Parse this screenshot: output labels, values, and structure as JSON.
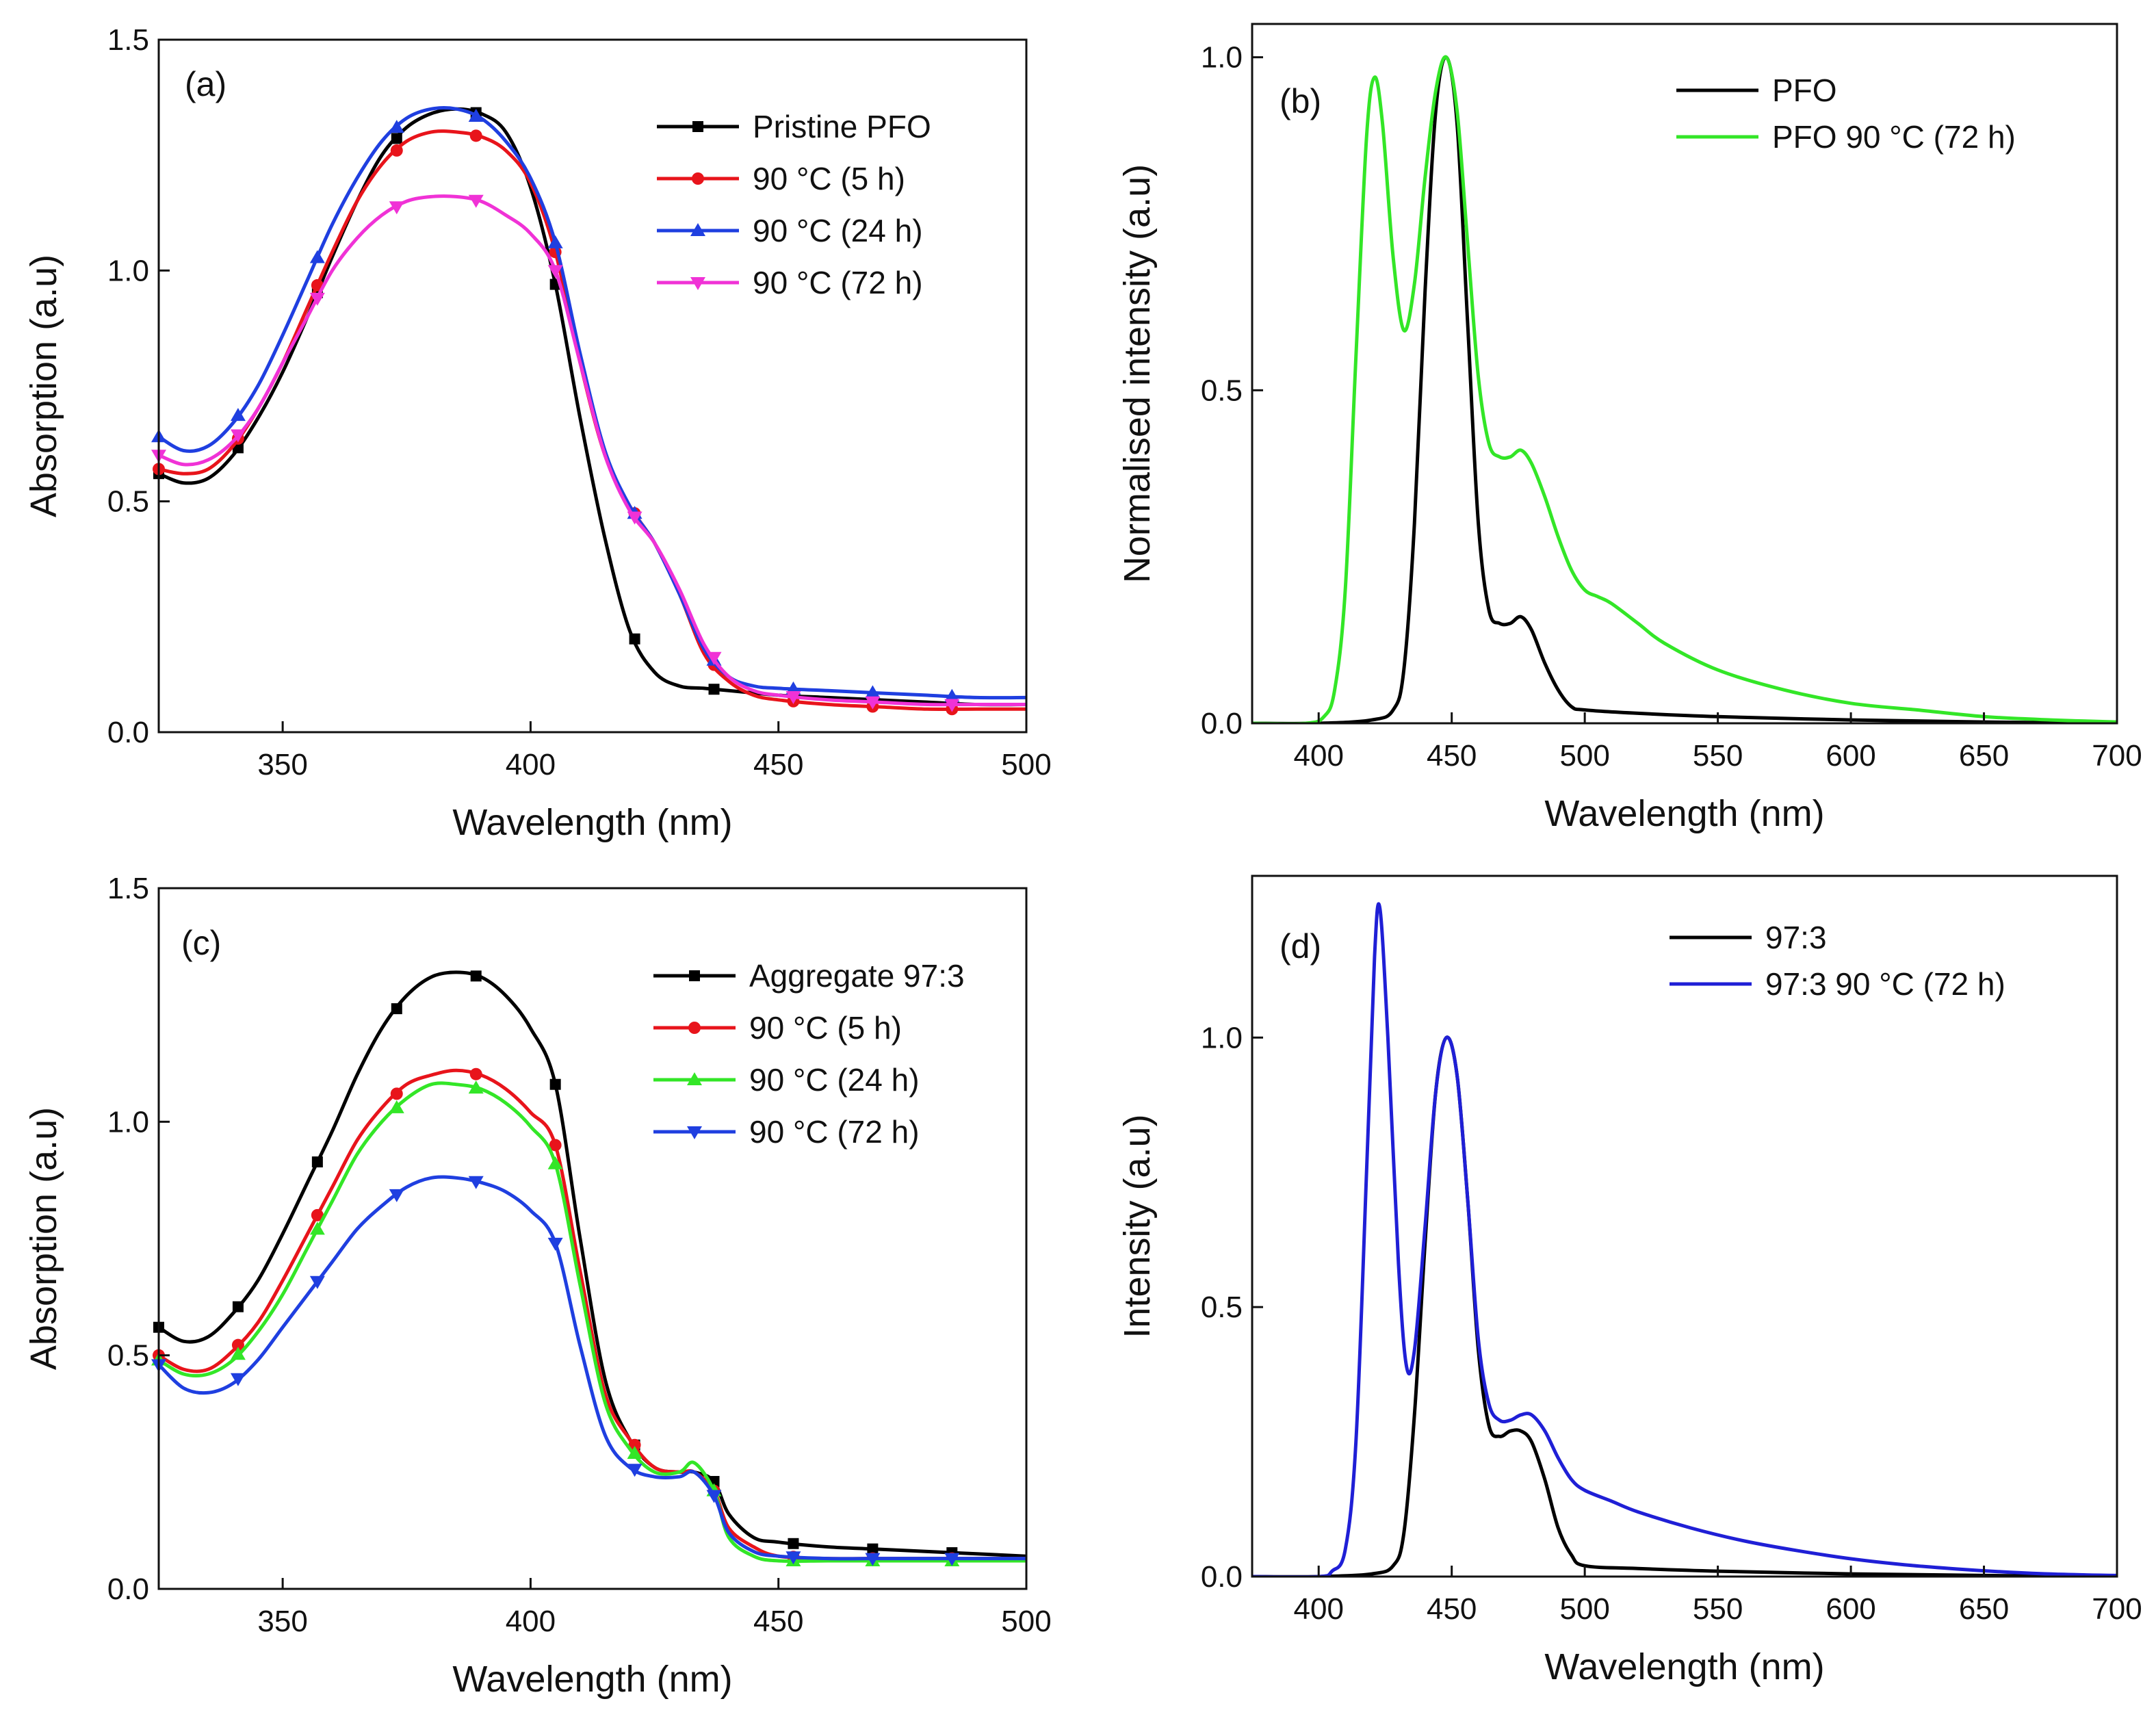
{
  "chart_data": [
    {
      "panel_label": "(a)",
      "type": "line",
      "xlabel": "Wavelength (nm)",
      "ylabel": "Absorption (a.u)",
      "xlim": [
        325,
        500
      ],
      "ylim": [
        0,
        1.5
      ],
      "xticks": [
        "350",
        "400",
        "450",
        "500"
      ],
      "yticks": [
        "0.0",
        "0.5",
        "1.0",
        "1.5"
      ],
      "legend": "top-right",
      "series": [
        {
          "name": "Pristine PFO",
          "color": "#000000",
          "marker": "square",
          "x": [
            325,
            330,
            335,
            340,
            345,
            350,
            355,
            360,
            365,
            370,
            375,
            380,
            385,
            390,
            395,
            400,
            405,
            410,
            415,
            420,
            425,
            430,
            435,
            440,
            445,
            450,
            460,
            470,
            480,
            490,
            500
          ],
          "y": [
            0.56,
            0.54,
            0.55,
            0.6,
            0.68,
            0.78,
            0.9,
            1.03,
            1.15,
            1.25,
            1.31,
            1.34,
            1.35,
            1.34,
            1.3,
            1.18,
            0.97,
            0.68,
            0.42,
            0.22,
            0.13,
            0.1,
            0.095,
            0.09,
            0.085,
            0.08,
            0.075,
            0.07,
            0.065,
            0.06,
            0.06
          ],
          "marker_x": [
            325,
            341,
            357,
            373,
            389,
            405,
            421,
            437,
            453,
            469,
            485
          ]
        },
        {
          "name": "90 °C (5 h)",
          "color": "#e8141b",
          "marker": "circle",
          "x": [
            325,
            330,
            335,
            340,
            345,
            350,
            355,
            360,
            365,
            370,
            375,
            380,
            385,
            390,
            395,
            400,
            405,
            410,
            415,
            420,
            425,
            430,
            435,
            440,
            445,
            450,
            460,
            470,
            480,
            490,
            500
          ],
          "y": [
            0.57,
            0.56,
            0.57,
            0.62,
            0.7,
            0.8,
            0.92,
            1.04,
            1.15,
            1.23,
            1.28,
            1.3,
            1.3,
            1.29,
            1.26,
            1.19,
            1.04,
            0.8,
            0.6,
            0.49,
            0.41,
            0.3,
            0.17,
            0.11,
            0.08,
            0.07,
            0.06,
            0.055,
            0.05,
            0.05,
            0.05
          ],
          "marker_x": [
            325,
            341,
            357,
            373,
            389,
            405,
            421,
            437,
            453,
            469,
            485
          ]
        },
        {
          "name": "90 °C (24 h)",
          "color": "#1f3fe0",
          "marker": "triangle-up",
          "x": [
            325,
            330,
            335,
            340,
            345,
            350,
            355,
            360,
            365,
            370,
            375,
            380,
            385,
            390,
            395,
            400,
            405,
            410,
            415,
            420,
            425,
            430,
            435,
            440,
            445,
            450,
            460,
            470,
            480,
            490,
            500
          ],
          "y": [
            0.64,
            0.61,
            0.62,
            0.67,
            0.75,
            0.86,
            0.98,
            1.1,
            1.2,
            1.28,
            1.33,
            1.35,
            1.35,
            1.33,
            1.28,
            1.2,
            1.06,
            0.82,
            0.61,
            0.49,
            0.41,
            0.3,
            0.18,
            0.12,
            0.1,
            0.095,
            0.09,
            0.085,
            0.08,
            0.075,
            0.075
          ],
          "marker_x": [
            325,
            341,
            357,
            373,
            389,
            405,
            421,
            437,
            453,
            469,
            485
          ]
        },
        {
          "name": "90 °C (72 h)",
          "color": "#f032d6",
          "marker": "triangle-down",
          "x": [
            325,
            330,
            335,
            340,
            345,
            350,
            355,
            360,
            365,
            370,
            375,
            380,
            385,
            390,
            395,
            400,
            405,
            410,
            415,
            420,
            425,
            430,
            435,
            440,
            445,
            450,
            460,
            470,
            480,
            490,
            500
          ],
          "y": [
            0.6,
            0.58,
            0.59,
            0.63,
            0.7,
            0.8,
            0.9,
            1.0,
            1.07,
            1.12,
            1.15,
            1.16,
            1.16,
            1.15,
            1.12,
            1.08,
            1.0,
            0.8,
            0.6,
            0.48,
            0.41,
            0.31,
            0.19,
            0.12,
            0.09,
            0.08,
            0.07,
            0.065,
            0.06,
            0.06,
            0.06
          ],
          "marker_x": [
            325,
            341,
            357,
            373,
            389,
            405,
            421,
            437,
            453,
            469,
            485
          ]
        }
      ]
    },
    {
      "panel_label": "(b)",
      "type": "line",
      "xlabel": "Wavelength (nm)",
      "ylabel": "Normalised intensity (a.u)",
      "xlim": [
        375,
        700
      ],
      "ylim": [
        0,
        1.05
      ],
      "xticks": [
        "400",
        "450",
        "500",
        "550",
        "600",
        "650",
        "700"
      ],
      "yticks": [
        "0.0",
        "0.5",
        "1.0"
      ],
      "legend": "top-right",
      "series": [
        {
          "name": "PFO",
          "color": "#000000",
          "x": [
            375,
            400,
            420,
            428,
            432,
            436,
            440,
            444,
            448,
            452,
            456,
            460,
            464,
            468,
            472,
            476,
            480,
            485,
            490,
            495,
            500,
            520,
            550,
            600,
            650,
            700
          ],
          "y": [
            0,
            0,
            0.005,
            0.02,
            0.08,
            0.3,
            0.65,
            0.92,
            1.0,
            0.9,
            0.6,
            0.3,
            0.17,
            0.15,
            0.15,
            0.16,
            0.14,
            0.09,
            0.05,
            0.025,
            0.02,
            0.015,
            0.01,
            0.005,
            0.002,
            0
          ]
        },
        {
          "name": "PFO 90 °C (72 h)",
          "color": "#33e627",
          "x": [
            375,
            395,
            402,
            406,
            410,
            414,
            418,
            421,
            424,
            428,
            432,
            436,
            440,
            444,
            448,
            452,
            456,
            460,
            464,
            468,
            472,
            476,
            480,
            485,
            490,
            495,
            500,
            505,
            510,
            520,
            530,
            550,
            575,
            600,
            625,
            650,
            675,
            700
          ],
          "y": [
            0,
            0,
            0.01,
            0.05,
            0.2,
            0.55,
            0.88,
            0.97,
            0.9,
            0.7,
            0.59,
            0.66,
            0.82,
            0.95,
            1.0,
            0.92,
            0.72,
            0.52,
            0.42,
            0.4,
            0.4,
            0.41,
            0.39,
            0.34,
            0.28,
            0.23,
            0.2,
            0.19,
            0.18,
            0.15,
            0.12,
            0.08,
            0.05,
            0.03,
            0.02,
            0.01,
            0.005,
            0.002
          ]
        }
      ]
    },
    {
      "panel_label": "(c)",
      "type": "line",
      "xlabel": "Wavelength (nm)",
      "ylabel": "Absorption (a.u)",
      "xlim": [
        325,
        500
      ],
      "ylim": [
        0,
        1.5
      ],
      "xticks": [
        "350",
        "400",
        "450",
        "500"
      ],
      "yticks": [
        "0.0",
        "0.5",
        "1.0",
        "1.5"
      ],
      "legend": "top-right",
      "series": [
        {
          "name": "Aggregate 97:3",
          "color": "#000000",
          "marker": "square",
          "x": [
            325,
            330,
            335,
            340,
            345,
            350,
            355,
            360,
            365,
            370,
            375,
            380,
            385,
            390,
            395,
            400,
            405,
            410,
            415,
            420,
            425,
            430,
            433,
            437,
            440,
            445,
            450,
            460,
            470,
            480,
            490,
            500
          ],
          "y": [
            0.56,
            0.53,
            0.54,
            0.59,
            0.66,
            0.76,
            0.87,
            0.98,
            1.1,
            1.2,
            1.27,
            1.31,
            1.32,
            1.31,
            1.27,
            1.2,
            1.08,
            0.75,
            0.45,
            0.32,
            0.26,
            0.25,
            0.25,
            0.23,
            0.16,
            0.11,
            0.1,
            0.09,
            0.085,
            0.08,
            0.075,
            0.07
          ],
          "marker_x": [
            325,
            341,
            357,
            373,
            389,
            405,
            421,
            437,
            453,
            469,
            485
          ]
        },
        {
          "name": "90 °C (5 h)",
          "color": "#e8141b",
          "marker": "circle",
          "x": [
            325,
            330,
            335,
            340,
            345,
            350,
            355,
            360,
            365,
            370,
            375,
            380,
            385,
            390,
            395,
            400,
            405,
            410,
            415,
            420,
            425,
            430,
            433,
            437,
            440,
            445,
            450,
            460,
            470,
            480,
            490,
            500
          ],
          "y": [
            0.5,
            0.47,
            0.47,
            0.51,
            0.57,
            0.66,
            0.76,
            0.86,
            0.96,
            1.03,
            1.08,
            1.1,
            1.11,
            1.1,
            1.07,
            1.02,
            0.95,
            0.68,
            0.42,
            0.32,
            0.26,
            0.25,
            0.25,
            0.21,
            0.13,
            0.09,
            0.07,
            0.065,
            0.065,
            0.065,
            0.065,
            0.065
          ],
          "marker_x": [
            325,
            341,
            357,
            373,
            389,
            405,
            421,
            437,
            453,
            469,
            485
          ]
        },
        {
          "name": "90 °C (24 h)",
          "color": "#33e627",
          "marker": "triangle-up",
          "x": [
            325,
            330,
            335,
            340,
            345,
            350,
            355,
            360,
            365,
            370,
            375,
            380,
            385,
            390,
            395,
            400,
            405,
            410,
            415,
            420,
            425,
            430,
            433,
            437,
            440,
            445,
            450,
            460,
            470,
            480,
            490,
            500
          ],
          "y": [
            0.49,
            0.46,
            0.46,
            0.49,
            0.55,
            0.63,
            0.73,
            0.83,
            0.93,
            1.0,
            1.05,
            1.08,
            1.08,
            1.07,
            1.04,
            0.99,
            0.91,
            0.65,
            0.4,
            0.3,
            0.25,
            0.25,
            0.27,
            0.21,
            0.11,
            0.07,
            0.06,
            0.06,
            0.06,
            0.06,
            0.06,
            0.06
          ],
          "marker_x": [
            325,
            341,
            357,
            373,
            389,
            405,
            421,
            437,
            453,
            469,
            485
          ]
        },
        {
          "name": "90 °C (72 h)",
          "color": "#1f3fe0",
          "marker": "triangle-down",
          "x": [
            325,
            330,
            335,
            340,
            345,
            350,
            355,
            360,
            365,
            370,
            375,
            380,
            385,
            390,
            395,
            400,
            405,
            410,
            415,
            420,
            425,
            430,
            433,
            437,
            440,
            445,
            450,
            460,
            470,
            480,
            490,
            500
          ],
          "y": [
            0.48,
            0.43,
            0.42,
            0.44,
            0.49,
            0.56,
            0.63,
            0.7,
            0.77,
            0.82,
            0.86,
            0.88,
            0.88,
            0.87,
            0.85,
            0.81,
            0.74,
            0.52,
            0.33,
            0.26,
            0.24,
            0.24,
            0.25,
            0.2,
            0.12,
            0.08,
            0.07,
            0.065,
            0.065,
            0.065,
            0.065,
            0.065
          ],
          "marker_x": [
            325,
            341,
            357,
            373,
            389,
            405,
            421,
            437,
            453,
            469,
            485
          ]
        }
      ]
    },
    {
      "panel_label": "(d)",
      "type": "line",
      "xlabel": "Wavelength (nm)",
      "ylabel": "Intensity (a.u)",
      "xlim": [
        375,
        700
      ],
      "ylim": [
        0,
        1.3
      ],
      "xticks": [
        "400",
        "450",
        "500",
        "550",
        "600",
        "650",
        "700"
      ],
      "yticks": [
        "0.0",
        "0.5",
        "1.0"
      ],
      "legend": "top-right",
      "series": [
        {
          "name": "97:3",
          "color": "#000000",
          "x": [
            375,
            400,
            420,
            428,
            432,
            436,
            440,
            444,
            448,
            452,
            456,
            460,
            464,
            468,
            472,
            476,
            480,
            485,
            490,
            495,
            500,
            520,
            550,
            600,
            650,
            700
          ],
          "y": [
            0,
            0,
            0.005,
            0.02,
            0.08,
            0.3,
            0.62,
            0.9,
            1.0,
            0.93,
            0.7,
            0.42,
            0.28,
            0.26,
            0.27,
            0.27,
            0.25,
            0.18,
            0.09,
            0.04,
            0.02,
            0.015,
            0.01,
            0.005,
            0.002,
            0
          ]
        },
        {
          "name": "97:3 90 °C (72 h)",
          "color": "#1f1fd6",
          "x": [
            375,
            400,
            405,
            410,
            414,
            418,
            421,
            423,
            426,
            430,
            433,
            436,
            440,
            444,
            448,
            452,
            456,
            460,
            464,
            468,
            472,
            476,
            480,
            485,
            490,
            495,
            500,
            510,
            520,
            540,
            560,
            580,
            600,
            620,
            640,
            660,
            680,
            700
          ],
          "y": [
            0,
            0,
            0.01,
            0.05,
            0.25,
            0.75,
            1.15,
            1.24,
            1.0,
            0.58,
            0.39,
            0.42,
            0.65,
            0.9,
            1.0,
            0.93,
            0.7,
            0.44,
            0.32,
            0.29,
            0.29,
            0.3,
            0.3,
            0.27,
            0.22,
            0.18,
            0.16,
            0.14,
            0.12,
            0.09,
            0.066,
            0.048,
            0.033,
            0.022,
            0.014,
            0.008,
            0.004,
            0.002
          ]
        }
      ]
    }
  ]
}
